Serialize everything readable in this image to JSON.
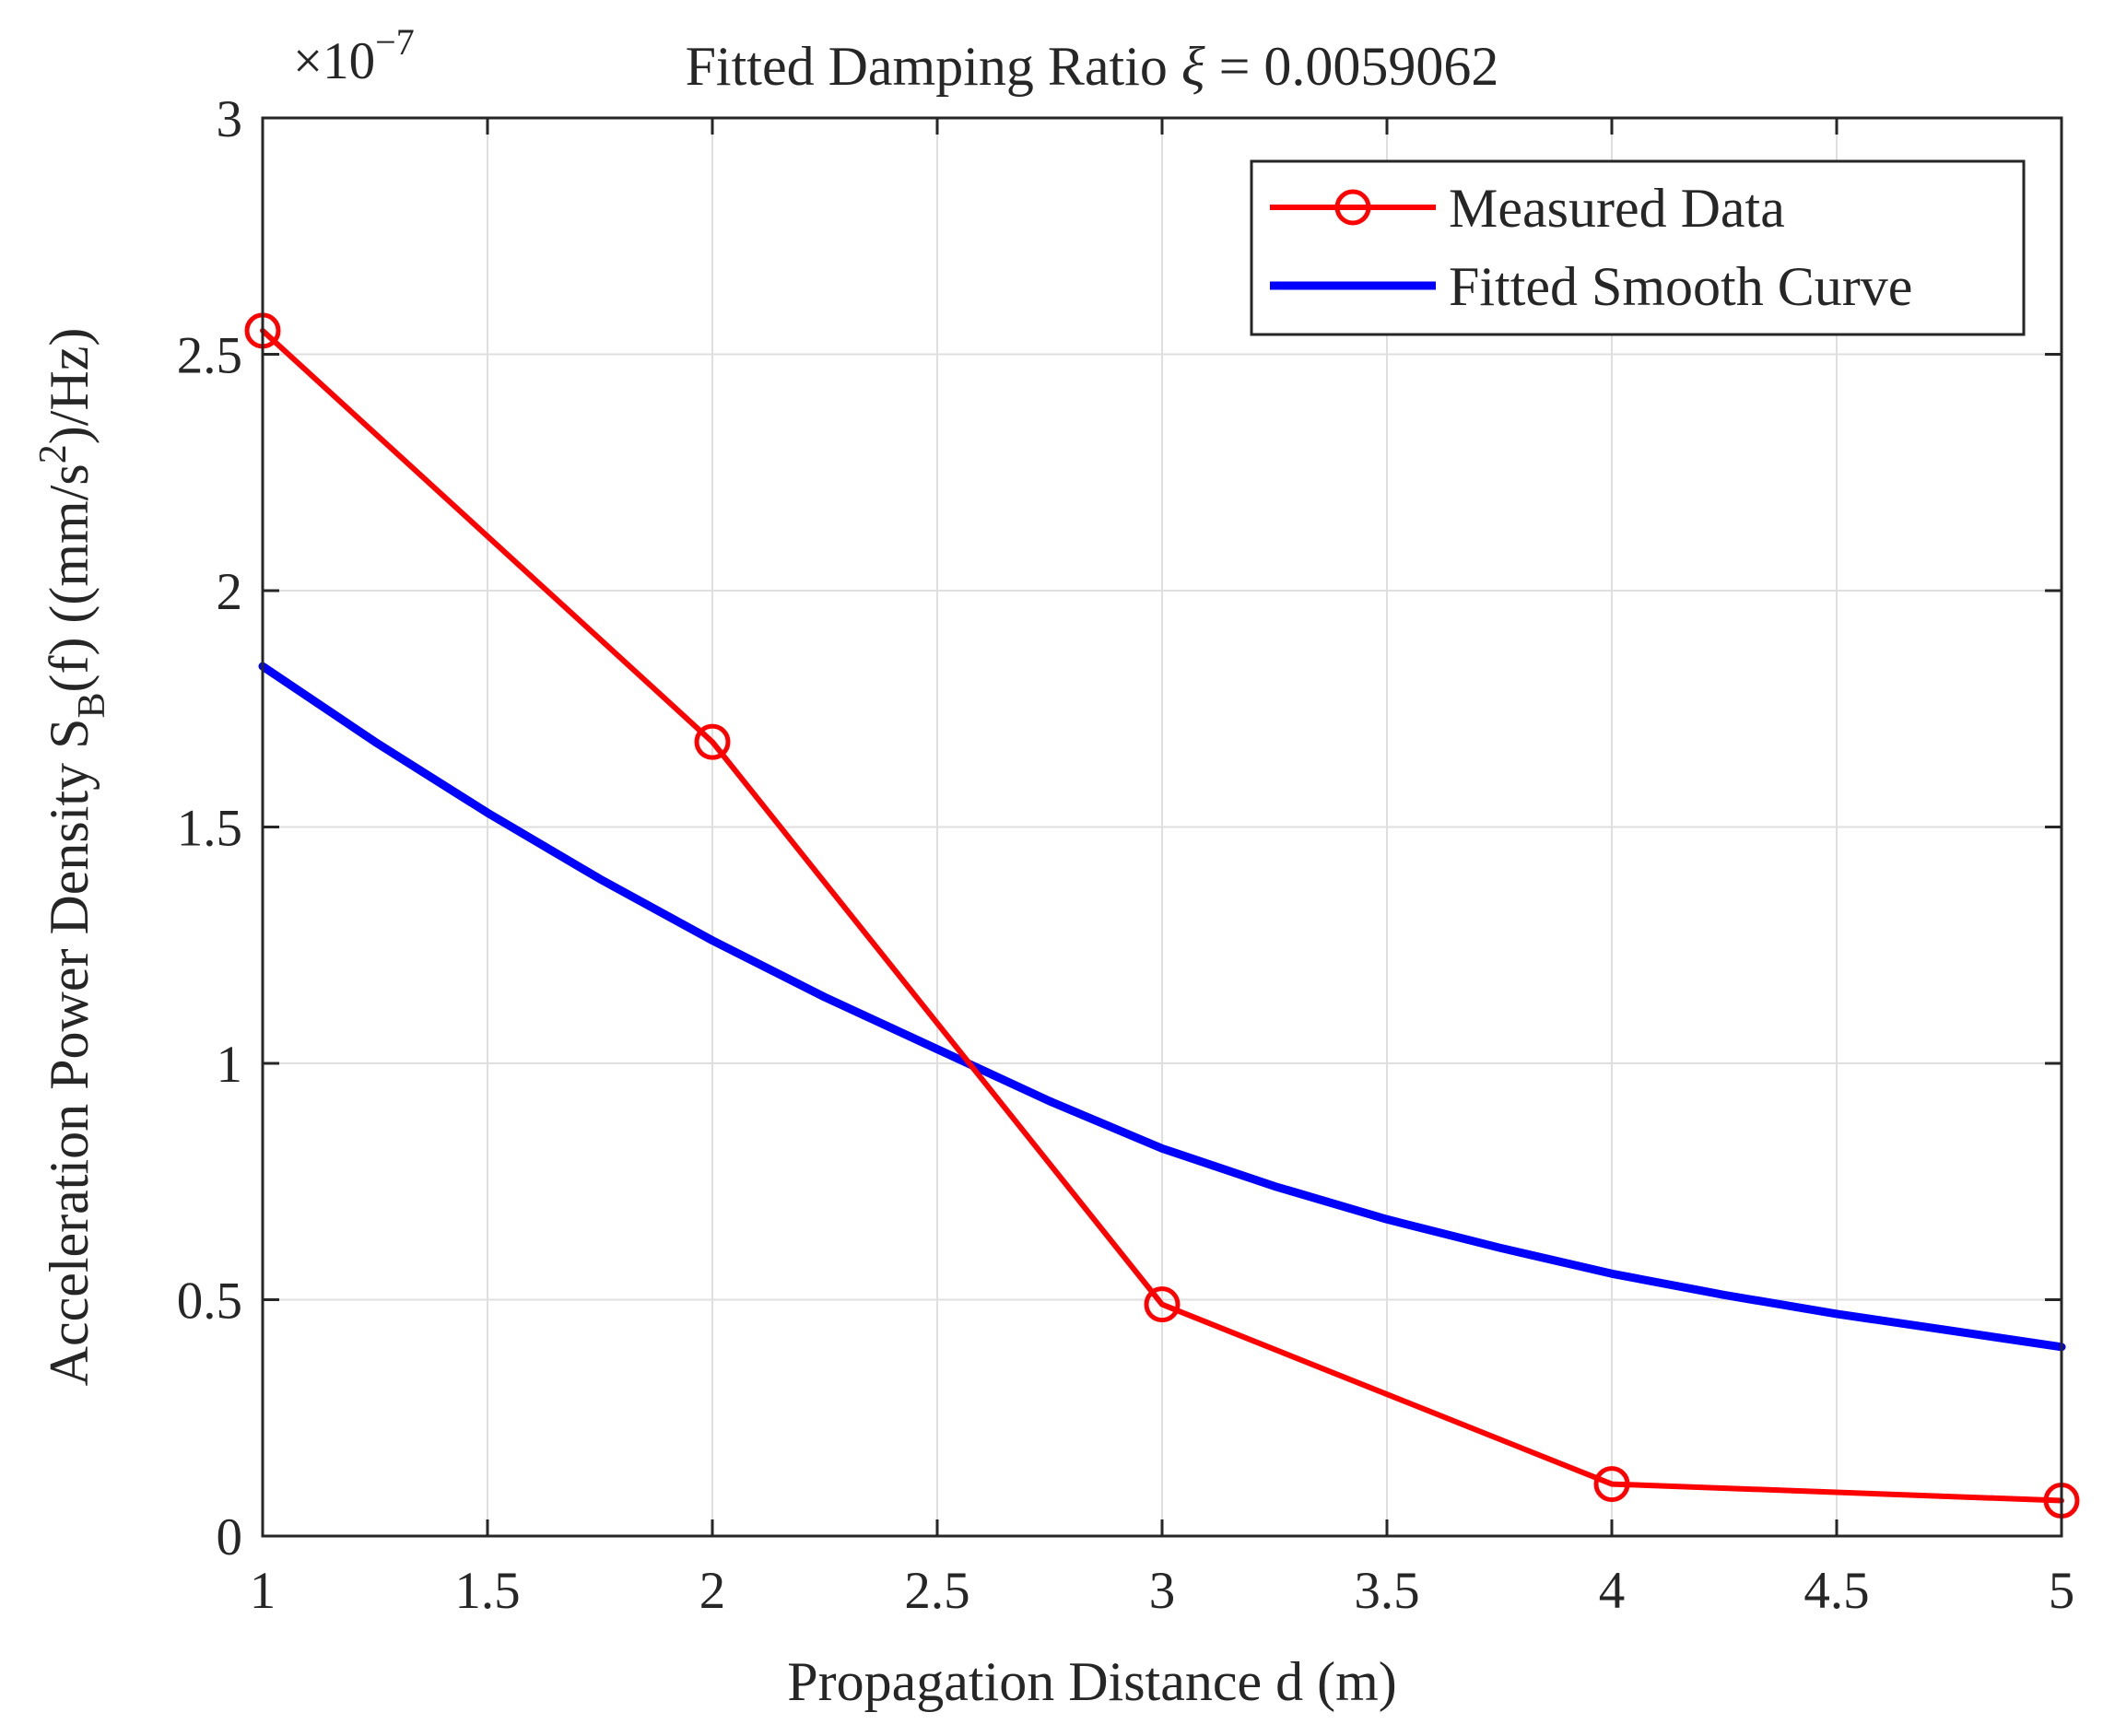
{
  "chart_data": {
    "type": "line",
    "title": "Fitted Damping Ratio ξ = 0.0059062",
    "xlabel": "Propagation Distance d (m)",
    "ylabel": {
      "prefix": "Acceleration Power Density S",
      "subscript": "B",
      "middle": "(f) ((mm/s",
      "superscript": "2",
      "suffix": ")/Hz)"
    },
    "y_exponent": {
      "base": "×10",
      "power": "−7"
    },
    "xlim": [
      1,
      5
    ],
    "ylim": [
      0,
      3
    ],
    "xticks": [
      1,
      1.5,
      2,
      2.5,
      3,
      3.5,
      4,
      4.5,
      5
    ],
    "xtick_labels": [
      "1",
      "1.5",
      "2",
      "2.5",
      "3",
      "3.5",
      "4",
      "4.5",
      "5"
    ],
    "yticks": [
      0,
      0.5,
      1,
      1.5,
      2,
      2.5,
      3
    ],
    "ytick_labels": [
      "0",
      "0.5",
      "1",
      "1.5",
      "2",
      "2.5",
      "3"
    ],
    "grid": true,
    "legend_position": "top-right",
    "series": [
      {
        "name": "Measured Data",
        "color": "#ff0000",
        "marker": "circle",
        "x": [
          1,
          2,
          3,
          4,
          5
        ],
        "y": [
          2.55,
          1.68,
          0.49,
          0.11,
          0.075
        ]
      },
      {
        "name": "Fitted Smooth Curve",
        "color": "#0000ff",
        "marker": "none",
        "x": [
          1,
          1.25,
          1.5,
          1.75,
          2,
          2.25,
          2.5,
          2.75,
          3,
          3.25,
          3.5,
          3.75,
          4,
          4.25,
          4.5,
          4.75,
          5
        ],
        "y": [
          1.84,
          1.68,
          1.53,
          1.39,
          1.26,
          1.14,
          1.03,
          0.92,
          0.82,
          0.74,
          0.67,
          0.61,
          0.555,
          0.51,
          0.47,
          0.435,
          0.4
        ]
      }
    ]
  }
}
